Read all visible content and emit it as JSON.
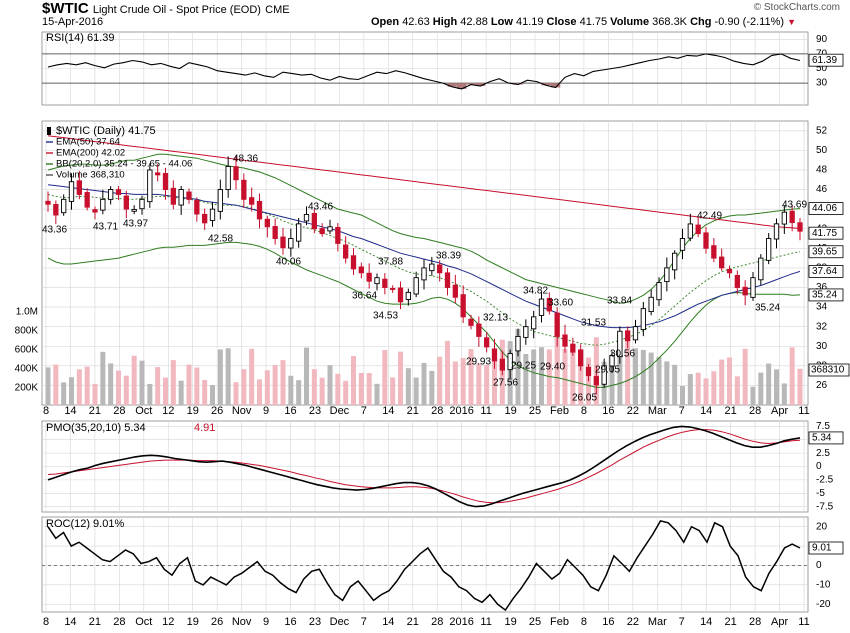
{
  "header": {
    "symbol": "$WTIC",
    "description": "Light Crude Oil - Spot Price (EOD)",
    "exchange": "CME",
    "date": "15-Apr-2016",
    "copyright": "© StockCharts.com",
    "quote": {
      "open_label": "Open",
      "open": "42.63",
      "high_label": "High",
      "high": "42.88",
      "low_label": "Low",
      "low": "41.19",
      "close_label": "Close",
      "close": "41.75",
      "volume_label": "Volume",
      "volume": "368.3K",
      "chg_label": "Chg",
      "chg": "-0.90 (-2.11%)"
    }
  },
  "colors": {
    "up": "#000000",
    "down": "#c8102e",
    "ema50": "#1f2b8c",
    "ema200": "#c8102e",
    "bb": "#2e7d1e",
    "vol_up": "#b8b8b8",
    "vol_down": "#f2b8c0",
    "grid": "#d6d6d6"
  },
  "chart_data": [
    {
      "type": "line",
      "panel": "rsi",
      "legend": "RSI(14) 61.39",
      "ylim": [
        0,
        100
      ],
      "yticks": [
        30,
        50,
        70,
        90
      ],
      "levels": [
        30,
        70
      ],
      "marker": "61.39",
      "values": [
        52,
        55,
        57,
        55,
        58,
        54,
        51,
        56,
        58,
        61,
        59,
        55,
        57,
        53,
        50,
        58,
        55,
        52,
        47,
        45,
        43,
        41,
        44,
        40,
        38,
        45,
        43,
        41,
        42,
        37,
        34,
        39,
        36,
        35,
        40,
        45,
        43,
        47,
        44,
        40,
        36,
        33,
        30,
        25,
        22,
        28,
        26,
        32,
        36,
        30,
        28,
        34,
        32,
        27,
        24,
        38,
        43,
        40,
        46,
        48,
        50,
        52,
        55,
        58,
        61,
        63,
        66,
        64,
        68,
        67,
        70,
        68,
        65,
        60,
        57,
        55,
        60,
        68,
        70,
        64,
        61
      ]
    },
    {
      "type": "candlestick",
      "panel": "price",
      "legend": [
        "$WTIC (Daily) 41.75",
        "EMA(50) 37.64",
        "EMA(200) 42.02",
        "BB(20,2.0) 35.24 - 39.65 - 44.06",
        "Volume 368,310"
      ],
      "ylim": [
        24,
        53
      ],
      "yticks": [
        26,
        28,
        30,
        32,
        34,
        36,
        38,
        40,
        42,
        44,
        46,
        48,
        50,
        52
      ],
      "volume_ticks": [
        "1.0M",
        "800K",
        "600K",
        "400K",
        "200K"
      ],
      "volume_values": [
        "368310"
      ],
      "markers": [
        "44.06",
        "41.75",
        "39.65",
        "37.64",
        "35.24"
      ],
      "annotations": [
        "43.36",
        "43.71",
        "43.97",
        "48.36",
        "42.58",
        "40.06",
        "43.46",
        "37.88",
        "36.64",
        "34.53",
        "38.39",
        "29.93",
        "32.13",
        "27.56",
        "29.25",
        "34.82",
        "29.40",
        "33.60",
        "26.05",
        "31.53",
        "29.05",
        "30.56",
        "33.84",
        "42.49",
        "43.69",
        "35.24"
      ],
      "close": [
        44.5,
        43.4,
        45,
        46.8,
        45.5,
        44.2,
        43.7,
        45,
        46,
        45.5,
        44,
        43.97,
        45,
        48,
        47.5,
        46,
        44.5,
        46,
        45,
        43.5,
        42.6,
        44,
        46,
        48.36,
        47,
        45,
        44.5,
        43,
        42.2,
        41,
        40.06,
        41,
        42.5,
        43.46,
        42,
        41.5,
        42.2,
        40.5,
        39,
        37.9,
        37.5,
        36.64,
        37,
        36,
        35.8,
        34.53,
        35.5,
        37,
        38,
        38.39,
        37.5,
        36,
        35,
        33,
        32.13,
        31,
        29.93,
        28.5,
        27.56,
        29.25,
        31,
        32,
        33,
        34.82,
        33.6,
        31,
        30,
        29.4,
        28,
        27,
        26.05,
        28,
        29.05,
        31.53,
        30.56,
        32,
        33.84,
        35,
        36.5,
        38,
        39.5,
        41,
        42.49,
        41.5,
        40,
        39,
        38,
        37.5,
        36,
        35.24,
        37,
        39,
        41,
        42.5,
        43.69,
        42.63,
        41.75
      ],
      "ema50": [
        46.5,
        46.4,
        46.3,
        46.2,
        46.1,
        46,
        45.9,
        45.8,
        45.7,
        45.6,
        45.6,
        45.5,
        45.5,
        45.5,
        45.5,
        45.4,
        45.3,
        45.2,
        45.1,
        45,
        44.8,
        44.7,
        44.6,
        44.5,
        44.4,
        44.2,
        44,
        43.8,
        43.6,
        43.4,
        43.2,
        43,
        42.8,
        42.6,
        42.4,
        42.2,
        42,
        41.8,
        41.5,
        41.2,
        41,
        40.7,
        40.4,
        40.1,
        39.8,
        39.5,
        39.3,
        39.1,
        38.9,
        38.7,
        38.5,
        38.2,
        38,
        37.7,
        37.4,
        37,
        36.6,
        36.2,
        35.8,
        35.4,
        35,
        34.6,
        34.3,
        34,
        33.7,
        33.4,
        33.1,
        32.8,
        32.5,
        32.3,
        32.1,
        32,
        31.9,
        31.9,
        31.9,
        32,
        32.1,
        32.3,
        32.5,
        32.8,
        33.1,
        33.5,
        33.9,
        34.3,
        34.6,
        34.9,
        35.2,
        35.4,
        35.6,
        35.8,
        36,
        36.2,
        36.5,
        36.8,
        37.1,
        37.4,
        37.64
      ],
      "ema200": [
        51.5,
        51.4,
        51.3,
        51.2,
        51.1,
        51,
        50.9,
        50.8,
        50.7,
        50.6,
        50.5,
        50.4,
        50.3,
        50.2,
        50.1,
        50,
        49.9,
        49.8,
        49.7,
        49.6,
        49.5,
        49.4,
        49.3,
        49.2,
        49.1,
        49,
        48.9,
        48.8,
        48.7,
        48.6,
        48.5,
        48.4,
        48.3,
        48.2,
        48.1,
        48,
        47.9,
        47.8,
        47.7,
        47.6,
        47.5,
        47.4,
        47.3,
        47.2,
        47.1,
        47,
        46.9,
        46.8,
        46.7,
        46.6,
        46.5,
        46.4,
        46.3,
        46.2,
        46.1,
        46,
        45.9,
        45.8,
        45.7,
        45.6,
        45.5,
        45.4,
        45.3,
        45.2,
        45.1,
        45,
        44.9,
        44.8,
        44.7,
        44.6,
        44.5,
        44.4,
        44.3,
        44.2,
        44.1,
        44,
        43.9,
        43.8,
        43.7,
        43.6,
        43.5,
        43.4,
        43.3,
        43.2,
        43.1,
        43,
        42.9,
        42.8,
        42.7,
        42.6,
        42.5,
        42.4,
        42.3,
        42.2,
        42.15,
        42.1,
        42.02
      ],
      "bb_upper": [
        48,
        48.2,
        48.4,
        48.5,
        48.6,
        48.6,
        48.5,
        48.5,
        48.6,
        48.8,
        49,
        49,
        49.2,
        49.4,
        49.6,
        49.6,
        49.5,
        49.4,
        49.3,
        49.2,
        49,
        48.8,
        48.6,
        48.4,
        48.3,
        48.2,
        48,
        47.8,
        47.5,
        47.2,
        46.8,
        46.4,
        46,
        45.6,
        45.2,
        44.8,
        44.4,
        44,
        43.8,
        43.6,
        43.4,
        43,
        42.6,
        42.2,
        41.8,
        41.5,
        41.3,
        41.1,
        41,
        40.8,
        40.6,
        40.4,
        40.2,
        40,
        39.7,
        39.3,
        38.8,
        38.4,
        38,
        37.6,
        37.2,
        36.8,
        36.6,
        36.4,
        36.2,
        36,
        35.8,
        35.6,
        35.4,
        35.2,
        35,
        34.8,
        34.6,
        34.4,
        34.5,
        34.8,
        35.2,
        35.8,
        36.6,
        37.6,
        38.8,
        40,
        41,
        41.8,
        42.4,
        42.8,
        43.1,
        43.3,
        43.4,
        43.4,
        43.5,
        43.6,
        43.7,
        43.8,
        43.9,
        44,
        44.06
      ],
      "bb_middle": [
        45.5,
        45.3,
        45.2,
        45.2,
        45.3,
        45.3,
        45.2,
        45.1,
        45.1,
        45.1,
        45,
        45,
        45.1,
        45.2,
        45.3,
        45.3,
        45.2,
        45.1,
        45,
        44.9,
        44.7,
        44.5,
        44.4,
        44.4,
        44.4,
        44.3,
        44.1,
        43.8,
        43.5,
        43.2,
        42.8,
        42.5,
        42.3,
        42.1,
        41.9,
        41.6,
        41.3,
        41,
        40.7,
        40.3,
        39.9,
        39.5,
        39.1,
        38.7,
        38.3,
        37.9,
        37.6,
        37.4,
        37.3,
        37.2,
        37,
        36.7,
        36.4,
        36,
        35.6,
        35.1,
        34.6,
        34,
        33.4,
        32.8,
        32.3,
        31.9,
        31.5,
        31.3,
        31.1,
        30.9,
        30.7,
        30.5,
        30.3,
        30.2,
        30.1,
        30.2,
        30.4,
        30.6,
        30.9,
        31.2,
        31.6,
        32.1,
        32.7,
        33.4,
        34.1,
        34.8,
        35.5,
        36.1,
        36.7,
        37.2,
        37.6,
        37.9,
        38.1,
        38.3,
        38.5,
        38.7,
        38.9,
        39.1,
        39.3,
        39.5,
        39.65
      ],
      "bb_lower": [
        39,
        38.6,
        38.4,
        38.4,
        38.5,
        38.6,
        38.7,
        38.8,
        38.9,
        39,
        39.2,
        39.4,
        39.6,
        39.8,
        40,
        40.1,
        40.1,
        40.2,
        40.3,
        40.3,
        40.3,
        40.4,
        40.5,
        40.6,
        40.6,
        40.5,
        40.4,
        40.2,
        39.9,
        39.5,
        39,
        38.6,
        38.2,
        37.8,
        37.5,
        37.2,
        36.9,
        36.6,
        36.2,
        35.8,
        35.4,
        35,
        34.6,
        34.4,
        34.3,
        34.3,
        34.3,
        34.4,
        34.6,
        34.9,
        35,
        34.8,
        34.4,
        33.8,
        33,
        32.2,
        31.4,
        30.4,
        29.4,
        28.6,
        28,
        27.6,
        27.3,
        27.1,
        26.9,
        26.8,
        26.6,
        26.4,
        26.2,
        26,
        25.8,
        25.8,
        26,
        26.2,
        26.5,
        26.9,
        27.4,
        28,
        28.8,
        29.6,
        30.5,
        31.5,
        32.5,
        33.4,
        34.2,
        34.8,
        35.2,
        35.4,
        35.5,
        35.4,
        35.3,
        35.3,
        35.3,
        35.3,
        35.3,
        35.2,
        35.24
      ]
    },
    {
      "type": "line",
      "panel": "pmo",
      "legend_main": "PMO(35,20,10) 5.34",
      "legend_signal": "4.91",
      "ylim": [
        -8.5,
        8.5
      ],
      "yticks": [
        7.5,
        5,
        2.5,
        0,
        -2.5,
        -5,
        -7.5
      ],
      "marker": "5.34",
      "pmo": [
        -2.5,
        -2,
        -1.5,
        -1,
        -0.6,
        -0.3,
        0.2,
        0.6,
        0.9,
        1.2,
        1.5,
        1.8,
        2,
        2.1,
        2,
        1.8,
        1.5,
        1.3,
        1.1,
        0.9,
        0.8,
        0.9,
        1,
        0.8,
        0.5,
        0.2,
        -0.2,
        -0.6,
        -1,
        -1.4,
        -1.8,
        -2.2,
        -2.6,
        -3,
        -3.4,
        -3.7,
        -4,
        -4.2,
        -4.3,
        -4.4,
        -4.3,
        -4.1,
        -3.8,
        -3.5,
        -3.2,
        -3,
        -3,
        -3.2,
        -3.6,
        -4.2,
        -5,
        -5.8,
        -6.6,
        -7.2,
        -7.5,
        -7.4,
        -7,
        -6.5,
        -6,
        -5.5,
        -5,
        -4.6,
        -4.2,
        -3.8,
        -3.4,
        -3,
        -2.5,
        -1.8,
        -1,
        -0.1,
        0.9,
        1.9,
        2.9,
        3.8,
        4.6,
        5.3,
        5.9,
        6.4,
        6.9,
        7.3,
        7.5,
        7.4,
        7.1,
        6.7,
        6.2,
        5.6,
        5,
        4.4,
        3.9,
        3.6,
        3.6,
        3.9,
        4.3,
        4.8,
        5.1,
        5.34
      ],
      "signal": [
        -1.5,
        -1.4,
        -1.2,
        -1,
        -0.8,
        -0.6,
        -0.4,
        -0.2,
        0,
        0.2,
        0.4,
        0.6,
        0.8,
        1,
        1.1,
        1.2,
        1.2,
        1.2,
        1.2,
        1.1,
        1.1,
        1.1,
        1,
        0.9,
        0.8,
        0.6,
        0.4,
        0.2,
        -0.1,
        -0.4,
        -0.7,
        -1,
        -1.4,
        -1.7,
        -2.1,
        -2.4,
        -2.8,
        -3.1,
        -3.4,
        -3.6,
        -3.8,
        -3.9,
        -4,
        -4,
        -4,
        -3.9,
        -3.8,
        -3.8,
        -3.9,
        -4.1,
        -4.4,
        -4.8,
        -5.2,
        -5.7,
        -6.1,
        -6.5,
        -6.7,
        -6.8,
        -6.7,
        -6.5,
        -6.2,
        -5.9,
        -5.5,
        -5.1,
        -4.7,
        -4.3,
        -3.8,
        -3.3,
        -2.7,
        -2,
        -1.3,
        -0.5,
        0.3,
        1.2,
        2,
        2.8,
        3.6,
        4.3,
        4.9,
        5.5,
        6,
        6.4,
        6.7,
        6.9,
        6.9,
        6.8,
        6.5,
        6.1,
        5.6,
        5.1,
        4.7,
        4.4,
        4.3,
        4.4,
        4.6,
        4.8,
        4.91
      ]
    },
    {
      "type": "line",
      "panel": "roc",
      "legend": "ROC(12) 9.01%",
      "ylim": [
        -24,
        25
      ],
      "yticks": [
        20,
        10,
        0,
        -10,
        -20
      ],
      "marker": "9.01",
      "values": [
        20,
        14,
        17,
        10,
        12,
        9,
        6,
        3,
        2,
        5,
        8,
        6,
        1,
        2,
        4,
        -2,
        -5,
        1,
        4,
        -8,
        -10,
        -6,
        -8,
        -10,
        -6,
        -4,
        -1,
        2,
        -3,
        -5,
        -9,
        -12,
        -14,
        -7,
        -3,
        -2,
        -9,
        -15,
        -18,
        -11,
        -8,
        -13,
        -18,
        -15,
        -13,
        -8,
        -2,
        2,
        6,
        9,
        3,
        -3,
        -6,
        -11,
        -13,
        -17,
        -19,
        -15,
        -20,
        -23,
        -17,
        -12,
        -6,
        1,
        -3,
        -7,
        -4,
        3,
        -1,
        -5,
        -11,
        -13,
        -5,
        5,
        1,
        -3,
        4,
        10,
        16,
        23,
        22,
        18,
        12,
        20,
        18,
        12,
        22,
        20,
        10,
        5,
        -6,
        -11,
        -13,
        -4,
        2,
        9,
        11,
        9.01
      ]
    }
  ],
  "x_axis": {
    "labels": [
      "8",
      "14",
      "21",
      "28",
      "Oct",
      "12",
      "19",
      "26",
      "Nov",
      "9",
      "16",
      "23",
      "Dec",
      "7",
      "14",
      "21",
      "28",
      "2016",
      "11",
      "19",
      "25",
      "Feb",
      "8",
      "16",
      "22",
      "Mar",
      "7",
      "14",
      "21",
      "28",
      "Apr",
      "11"
    ]
  }
}
